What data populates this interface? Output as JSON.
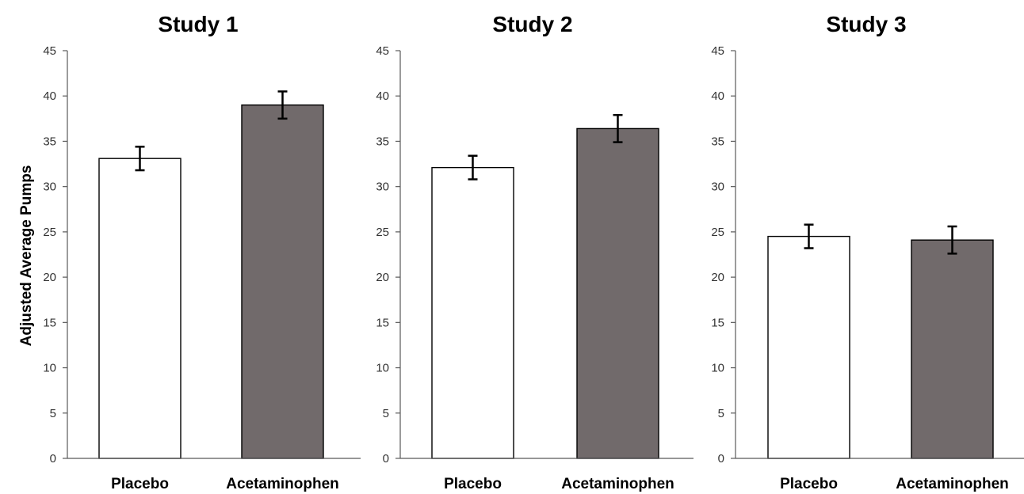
{
  "ylabel": "Adjusted Average Pumps",
  "colors": {
    "placebo": "#ffffff",
    "acetaminophen": "#716a6b"
  },
  "chart_data": [
    {
      "type": "bar",
      "title": "Study 1",
      "categories": [
        "Placebo",
        "Acetaminophen"
      ],
      "values": [
        33.1,
        39.0
      ],
      "error": [
        1.3,
        1.5
      ],
      "ylim": [
        0,
        45
      ],
      "yticks": [
        "0",
        "5",
        "10",
        "15",
        "20",
        "25",
        "30",
        "35",
        "40",
        "45"
      ],
      "ylabel": "Adjusted Average Pumps"
    },
    {
      "type": "bar",
      "title": "Study 2",
      "categories": [
        "Placebo",
        "Acetaminophen"
      ],
      "values": [
        32.1,
        36.4
      ],
      "error": [
        1.3,
        1.5
      ],
      "ylim": [
        0,
        45
      ],
      "yticks": [
        "0",
        "5",
        "10",
        "15",
        "20",
        "25",
        "30",
        "35",
        "40",
        "45"
      ]
    },
    {
      "type": "bar",
      "title": "Study 3",
      "categories": [
        "Placebo",
        "Acetaminophen"
      ],
      "values": [
        24.5,
        24.1
      ],
      "error": [
        1.3,
        1.5
      ],
      "ylim": [
        0,
        45
      ],
      "yticks": [
        "0",
        "5",
        "10",
        "15",
        "20",
        "25",
        "30",
        "35",
        "40",
        "45"
      ]
    }
  ]
}
